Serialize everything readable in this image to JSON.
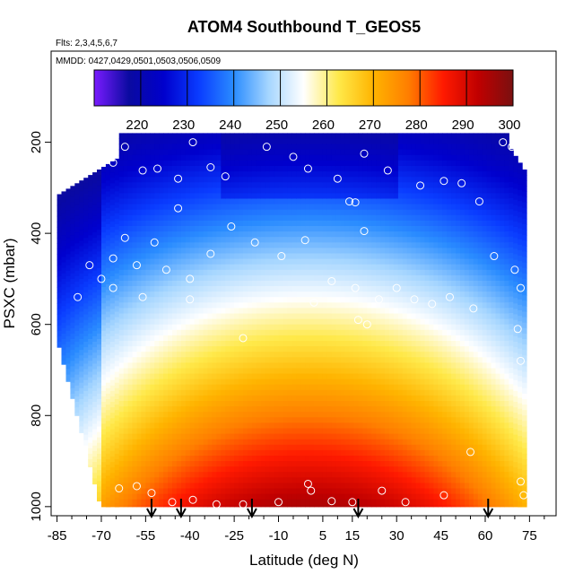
{
  "chart_data": {
    "type": "heatmap",
    "title": "ATOM4 Southbound T_GEOS5",
    "subtitle_flights": "Flts: 2,3,4,5,6,7",
    "subtitle_dates": "MMDD: 0427,0429,0501,0503,0506,0509",
    "xlabel": "Latitude (deg N)",
    "ylabel": "PSXC (mbar)",
    "xlim": [
      -87,
      84
    ],
    "ylim": [
      1020,
      0
    ],
    "x_ticks": [
      -85,
      -70,
      -55,
      -40,
      -25,
      -10,
      5,
      15,
      30,
      45,
      60,
      75
    ],
    "x_tick_labels": [
      "-85",
      "-70",
      "-55",
      "-40",
      "-25",
      "-10",
      "5",
      "15",
      "30",
      "45",
      "60",
      "75"
    ],
    "y_ticks": [
      200,
      400,
      600,
      800,
      1000
    ],
    "y_tick_labels": [
      "200",
      "400",
      "600",
      "800",
      "1000"
    ],
    "colorbar": {
      "min": 210,
      "max": 300,
      "ticks": [
        220,
        230,
        240,
        250,
        260,
        270,
        280,
        290,
        300
      ],
      "tick_labels": [
        "220",
        "230",
        "240",
        "250",
        "260",
        "270",
        "280",
        "290",
        "300"
      ],
      "colors": [
        "#7a1cff",
        "#0a0aa0",
        "#0000cd",
        "#0a3cff",
        "#2a8cff",
        "#a6d6ff",
        "#ffffff",
        "#ffe94a",
        "#ffb400",
        "#ff7e00",
        "#ff1a00",
        "#c00000",
        "#7a1010"
      ]
    },
    "sounding_latitudes": [
      -53,
      -43,
      -19,
      17,
      61
    ],
    "sample_points": [
      {
        "lat": -80,
        "p": 240
      },
      {
        "lat": -73,
        "p": 255
      },
      {
        "lat": -68,
        "p": 230
      },
      {
        "lat": -66,
        "p": 245
      },
      {
        "lat": -62,
        "p": 210
      },
      {
        "lat": -56,
        "p": 262
      },
      {
        "lat": -51,
        "p": 258
      },
      {
        "lat": -44,
        "p": 280
      },
      {
        "lat": -39,
        "p": 200
      },
      {
        "lat": -33,
        "p": 255
      },
      {
        "lat": -28,
        "p": 275
      },
      {
        "lat": -14,
        "p": 210
      },
      {
        "lat": -5,
        "p": 232
      },
      {
        "lat": 0,
        "p": 258
      },
      {
        "lat": 10,
        "p": 280
      },
      {
        "lat": 19,
        "p": 225
      },
      {
        "lat": 27,
        "p": 262
      },
      {
        "lat": 38,
        "p": 295
      },
      {
        "lat": 46,
        "p": 285
      },
      {
        "lat": 52,
        "p": 290
      },
      {
        "lat": 58,
        "p": 330
      },
      {
        "lat": 66,
        "p": 200
      },
      {
        "lat": 69,
        "p": 210
      },
      {
        "lat": 14,
        "p": 330
      },
      {
        "lat": 16,
        "p": 332
      },
      {
        "lat": 19,
        "p": 395
      },
      {
        "lat": -74,
        "p": 470
      },
      {
        "lat": -70,
        "p": 500
      },
      {
        "lat": -66,
        "p": 455
      },
      {
        "lat": -62,
        "p": 410
      },
      {
        "lat": -58,
        "p": 470
      },
      {
        "lat": -56,
        "p": 540
      },
      {
        "lat": -52,
        "p": 420
      },
      {
        "lat": -48,
        "p": 480
      },
      {
        "lat": -44,
        "p": 345
      },
      {
        "lat": -40,
        "p": 500
      },
      {
        "lat": -33,
        "p": 445
      },
      {
        "lat": -26,
        "p": 385
      },
      {
        "lat": -18,
        "p": 420
      },
      {
        "lat": -9,
        "p": 450
      },
      {
        "lat": -1,
        "p": 415
      },
      {
        "lat": 8,
        "p": 505
      },
      {
        "lat": 16,
        "p": 520
      },
      {
        "lat": 24,
        "p": 545
      },
      {
        "lat": 30,
        "p": 520
      },
      {
        "lat": 36,
        "p": 545
      },
      {
        "lat": 42,
        "p": 555
      },
      {
        "lat": 48,
        "p": 540
      },
      {
        "lat": 56,
        "p": 565
      },
      {
        "lat": 63,
        "p": 450
      },
      {
        "lat": 70,
        "p": 480
      },
      {
        "lat": 72,
        "p": 520
      },
      {
        "lat": -78,
        "p": 540
      },
      {
        "lat": -66,
        "p": 520
      },
      {
        "lat": -40,
        "p": 545
      },
      {
        "lat": 2,
        "p": 552
      },
      {
        "lat": 17,
        "p": 590
      },
      {
        "lat": 20,
        "p": 600
      },
      {
        "lat": -22,
        "p": 630
      },
      {
        "lat": 71,
        "p": 610
      },
      {
        "lat": 72,
        "p": 680
      },
      {
        "lat": -64,
        "p": 960
      },
      {
        "lat": -58,
        "p": 955
      },
      {
        "lat": -53,
        "p": 970
      },
      {
        "lat": -46,
        "p": 990
      },
      {
        "lat": -39,
        "p": 985
      },
      {
        "lat": -31,
        "p": 995
      },
      {
        "lat": -22,
        "p": 995
      },
      {
        "lat": -10,
        "p": 990
      },
      {
        "lat": 0,
        "p": 950
      },
      {
        "lat": 1,
        "p": 965
      },
      {
        "lat": 8,
        "p": 988
      },
      {
        "lat": 15,
        "p": 990
      },
      {
        "lat": 25,
        "p": 965
      },
      {
        "lat": 33,
        "p": 990
      },
      {
        "lat": 46,
        "p": 975
      },
      {
        "lat": 55,
        "p": 880
      },
      {
        "lat": 72,
        "p": 945
      },
      {
        "lat": 73,
        "p": 975
      }
    ]
  }
}
